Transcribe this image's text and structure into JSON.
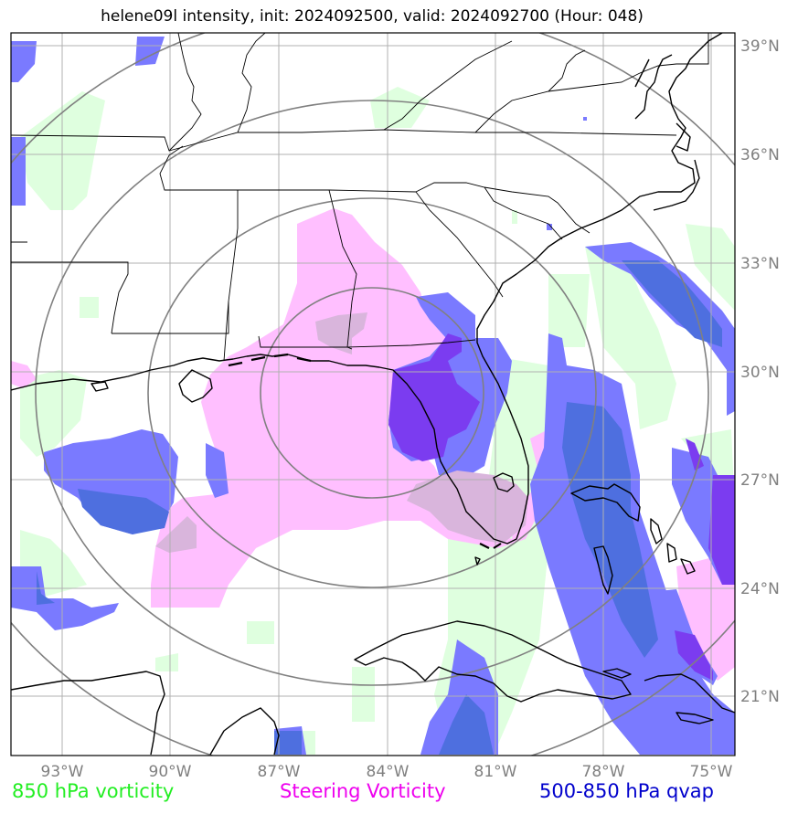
{
  "title": "helene09l intensity, init: 2024092500, valid: 2024092700 (Hour: 048)",
  "storm": "helene09l",
  "init": "2024092500",
  "valid": "2024092700",
  "forecast_hour": "048",
  "longitude_ticks": [
    "93°W",
    "90°W",
    "87°W",
    "84°W",
    "81°W",
    "78°W",
    "75°W"
  ],
  "latitude_ticks": [
    "39°N",
    "36°N",
    "33°N",
    "30°N",
    "27°N",
    "24°N",
    "21°N"
  ],
  "legend": [
    {
      "label": "850 hPa vorticity",
      "color": "#22ee22"
    },
    {
      "label": "Steering Vorticity",
      "color": "#ee00ee"
    },
    {
      "label": "500-850 hPa qvap",
      "color": "#0000cc"
    }
  ],
  "colors": {
    "vorticity_fill": "#dfffdf",
    "steering_fill": "#ffbfff",
    "qvap_fill": "#7a7aff",
    "qvap_dark_fill": "#4e6fdf",
    "overlap_fill": "#d9b5dc",
    "range_rings": "#808080",
    "gridlines": "#b0b0b0",
    "coastlines": "#000000"
  }
}
